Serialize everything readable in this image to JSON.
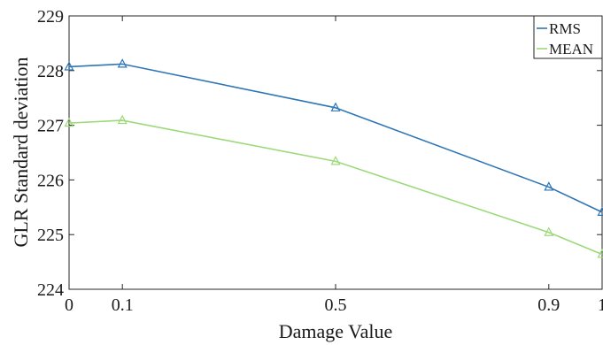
{
  "chart_data": {
    "type": "line",
    "xlabel": "Damage Value",
    "ylabel": "GLR Standard deviation",
    "xlim": [
      0,
      1
    ],
    "ylim": [
      224,
      229
    ],
    "x_ticks": [
      0,
      0.1,
      0.5,
      0.9,
      1
    ],
    "x_tick_labels": [
      "0",
      "0.1",
      "0.5",
      "0.9",
      "1"
    ],
    "y_ticks": [
      224,
      225,
      226,
      227,
      228,
      229
    ],
    "y_tick_labels": [
      "224",
      "225",
      "226",
      "227",
      "228",
      "229"
    ],
    "grid": false,
    "legend_position": "top-right",
    "marker": "triangle",
    "x": [
      0,
      0.1,
      0.5,
      0.9,
      1
    ],
    "series": [
      {
        "name": "RMS",
        "color": "#2e75b6",
        "values": [
          228.07,
          228.12,
          227.32,
          225.87,
          225.41
        ]
      },
      {
        "name": "MEAN",
        "color": "#9dd97a",
        "values": [
          227.04,
          227.09,
          226.34,
          225.04,
          224.64
        ]
      }
    ]
  }
}
